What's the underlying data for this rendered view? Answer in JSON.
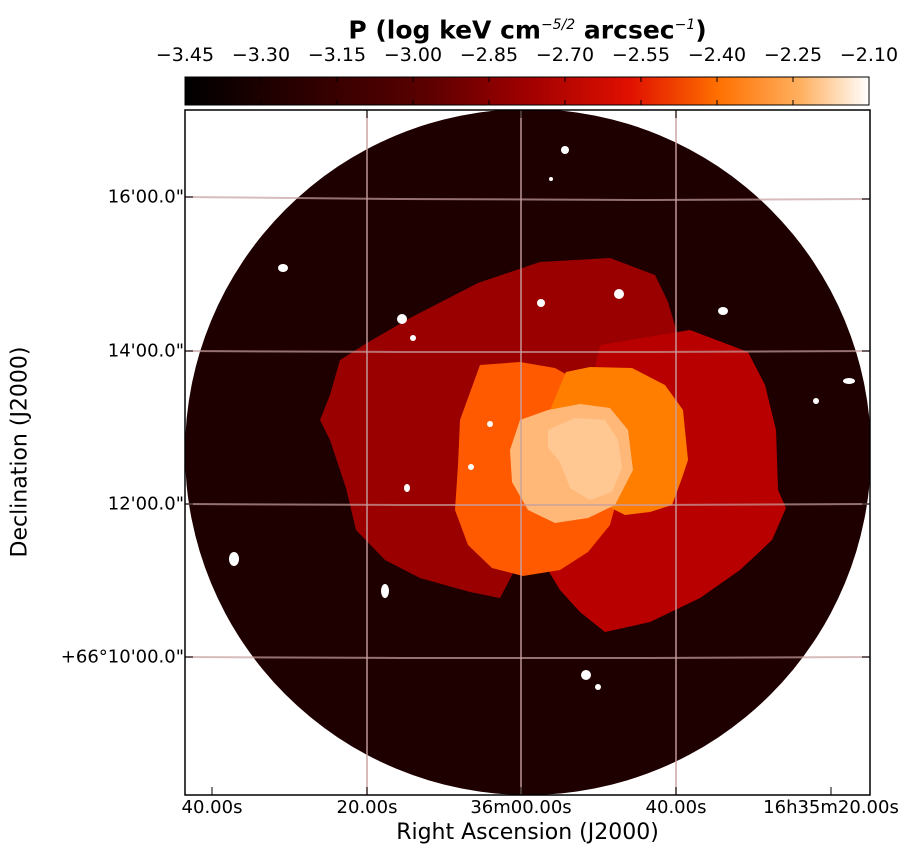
{
  "chart_data": {
    "type": "heatmap",
    "title_main": "P (log keV cm",
    "title_exp1": "−5/2",
    "title_mid": " arcsec",
    "title_exp2": "−1",
    "title_end": ")",
    "xlabel": "Right Ascension (J2000)",
    "ylabel": "Declination (J2000)",
    "colormap": "gist_heat",
    "colorbar": {
      "min": -3.45,
      "max": -2.1,
      "position": "top",
      "ticks": [
        "−3.45",
        "−3.30",
        "−3.15",
        "−3.00",
        "−2.85",
        "−2.70",
        "−2.55",
        "−2.40",
        "−2.25",
        "−2.10"
      ]
    },
    "x_ticks": [
      "40.00s",
      "20.00s",
      "36m00.00s",
      "40.00s",
      "16h35m20.00s"
    ],
    "y_ticks": [
      "16'00.0\"",
      "14'00.0\"",
      "12'00.0\"",
      "+66°10'00.0\""
    ],
    "grid": true,
    "regions": [
      {
        "name": "outer field",
        "value": -3.38,
        "color": "#1f0000"
      },
      {
        "name": "left shell",
        "value": -2.98,
        "color": "#9a0000"
      },
      {
        "name": "right shell",
        "value": -2.93,
        "color": "#b80000"
      },
      {
        "name": "left inner",
        "value": -2.62,
        "color": "#ff5a00"
      },
      {
        "name": "right inner",
        "value": -2.55,
        "color": "#ff7e00"
      },
      {
        "name": "core",
        "value": -2.3,
        "color": "#ffb878"
      },
      {
        "name": "core peak",
        "value": -2.25,
        "color": "#ffc893"
      },
      {
        "name": "masked point sources",
        "value": null,
        "color": "#ffffff"
      }
    ]
  }
}
